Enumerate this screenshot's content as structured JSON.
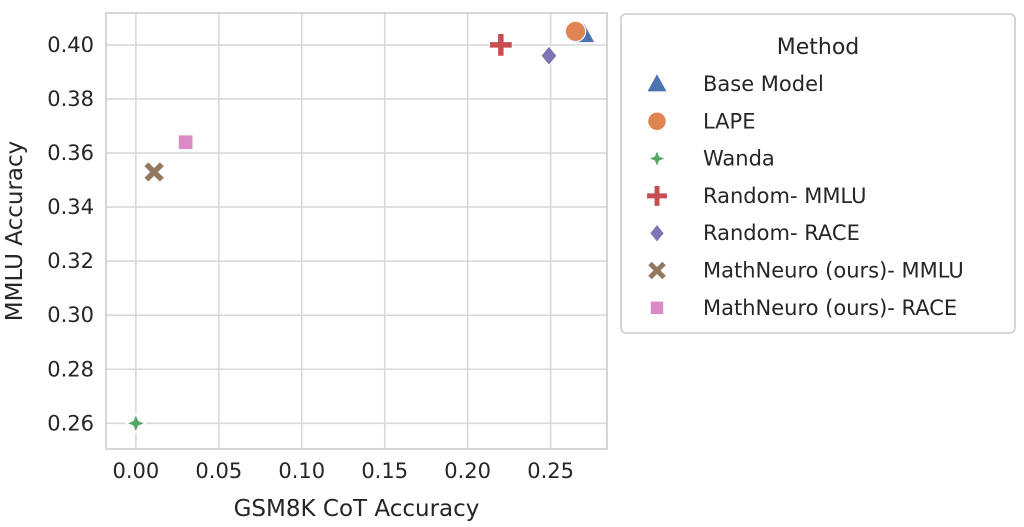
{
  "chart_data": {
    "type": "scatter",
    "xlabel": "GSM8K CoT Accuracy",
    "ylabel": "MMLU Accuracy",
    "xlim": [
      -0.018,
      0.284
    ],
    "ylim": [
      0.2505,
      0.4118
    ],
    "xticks": [
      "0.00",
      "0.05",
      "0.10",
      "0.15",
      "0.20",
      "0.25"
    ],
    "yticks": [
      "0.26",
      "0.28",
      "0.30",
      "0.32",
      "0.34",
      "0.36",
      "0.38",
      "0.40"
    ],
    "grid": true,
    "legend": {
      "title": "Method",
      "placement": "outside-right"
    },
    "series": [
      {
        "name": "Base Model",
        "marker": "triangle",
        "color": "#4c72b0",
        "x": 0.27,
        "y": 0.404
      },
      {
        "name": "LAPE",
        "marker": "circle",
        "color": "#dd8452",
        "x": 0.265,
        "y": 0.405
      },
      {
        "name": "Wanda",
        "marker": "star",
        "color": "#55a868",
        "x": 0.0,
        "y": 0.26
      },
      {
        "name": "Random- MMLU",
        "marker": "plus",
        "color": "#c44e52",
        "x": 0.22,
        "y": 0.4
      },
      {
        "name": "Random- RACE",
        "marker": "diamond",
        "color": "#8172b3",
        "x": 0.249,
        "y": 0.396
      },
      {
        "name": "MathNeuro (ours)- MMLU",
        "marker": "x",
        "color": "#937860",
        "x": 0.011,
        "y": 0.353
      },
      {
        "name": "MathNeuro (ours)- RACE",
        "marker": "square",
        "color": "#da8bc3",
        "x": 0.03,
        "y": 0.364
      }
    ]
  }
}
